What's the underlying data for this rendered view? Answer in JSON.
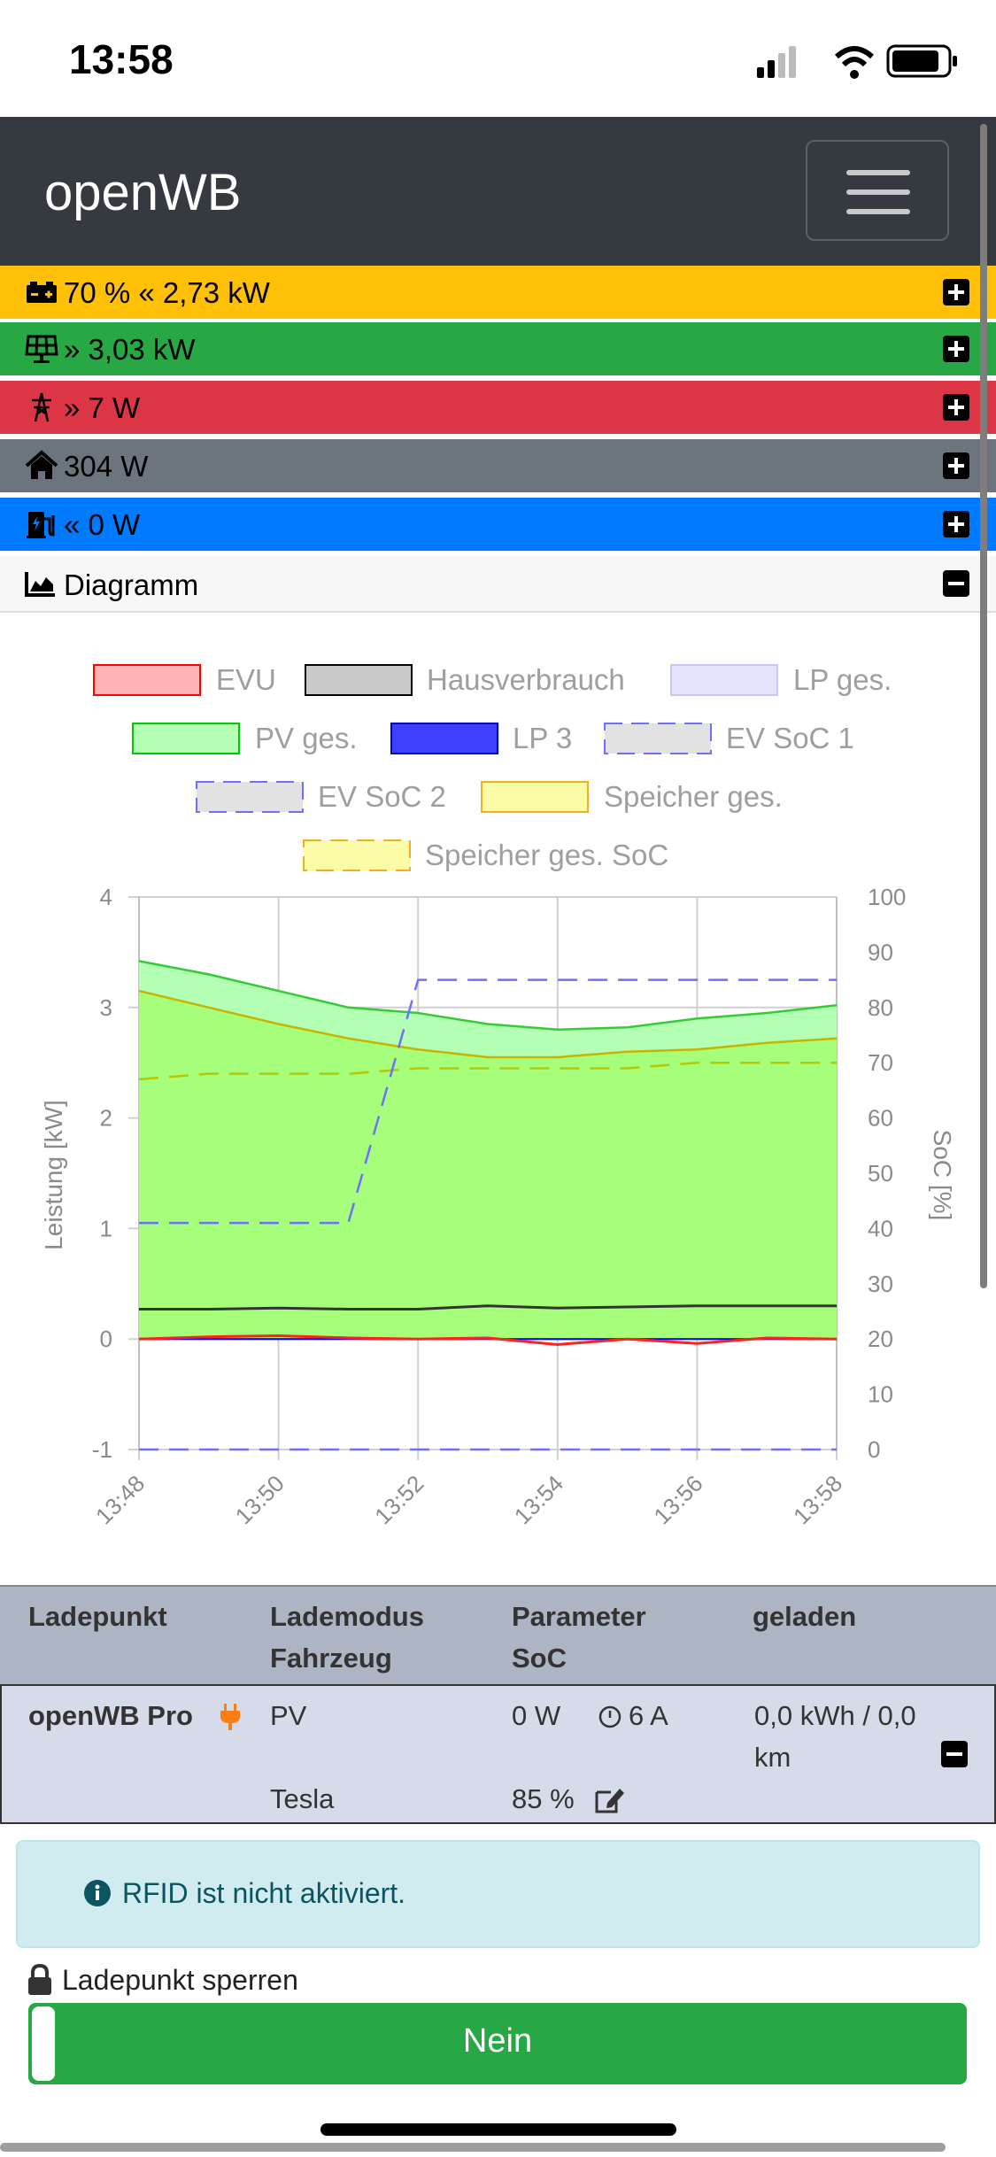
{
  "status_bar": {
    "time": "13:58"
  },
  "app": {
    "brand": "openWB"
  },
  "summary_rows": [
    {
      "label": "70 % « 2,73 kW",
      "color": "#ffc107",
      "icon": "battery-icon"
    },
    {
      "label": "» 3,03 kW",
      "color": "#28a745",
      "icon": "solar-panel-icon"
    },
    {
      "label": "» 7 W",
      "color": "#dc3545",
      "icon": "power-tower-icon"
    },
    {
      "label": "304 W",
      "color": "#6c757d",
      "icon": "home-icon"
    },
    {
      "label": "« 0 W",
      "color": "#007bff",
      "icon": "charging-station-icon"
    }
  ],
  "diagram": {
    "title": "Diagramm"
  },
  "chart_data": {
    "type": "area",
    "x": [
      "13:48",
      "13:49",
      "13:50",
      "13:51",
      "13:52",
      "13:53",
      "13:54",
      "13:55",
      "13:56",
      "13:57",
      "13:58"
    ],
    "x_tick_labels": [
      "13:48",
      "13:50",
      "13:52",
      "13:54",
      "13:56",
      "13:58"
    ],
    "ylabel": "Leistung [kW]",
    "ylabel_right": "SoC [%]",
    "ylim": [
      -1,
      4
    ],
    "ylim_right": [
      0,
      100
    ],
    "y_ticks": [
      "-1",
      "0",
      "1",
      "2",
      "3",
      "4"
    ],
    "y_ticks_right": [
      "0",
      "10",
      "20",
      "30",
      "40",
      "50",
      "60",
      "70",
      "80",
      "90",
      "100"
    ],
    "grid": true,
    "legend_position": "top",
    "series": [
      {
        "name": "EVU",
        "axis": "left",
        "values": [
          0.0,
          0.02,
          0.03,
          0.01,
          0.0,
          0.01,
          -0.05,
          0.0,
          -0.04,
          0.01,
          0.0
        ]
      },
      {
        "name": "Hausverbrauch",
        "axis": "left",
        "values": [
          0.27,
          0.27,
          0.28,
          0.27,
          0.27,
          0.3,
          0.28,
          0.29,
          0.3,
          0.3,
          0.3
        ]
      },
      {
        "name": "LP ges.",
        "axis": "left",
        "values": [
          0,
          0,
          0,
          0,
          0,
          0,
          0,
          0,
          0,
          0,
          0
        ]
      },
      {
        "name": "PV ges.",
        "axis": "left",
        "values": [
          3.42,
          3.3,
          3.15,
          3.0,
          2.95,
          2.85,
          2.8,
          2.82,
          2.9,
          2.95,
          3.02
        ]
      },
      {
        "name": "LP 3",
        "axis": "left",
        "values": [
          0,
          0,
          0,
          0,
          0,
          0,
          0,
          0,
          0,
          0,
          0
        ]
      },
      {
        "name": "EV SoC 1",
        "axis": "right",
        "values": [
          41,
          41,
          41,
          41,
          85,
          85,
          85,
          85,
          85,
          85,
          85
        ]
      },
      {
        "name": "EV SoC 2",
        "axis": "right",
        "values": [
          0,
          0,
          0,
          0,
          0,
          0,
          0,
          0,
          0,
          0,
          0
        ]
      },
      {
        "name": "Speicher ges.",
        "axis": "left",
        "values": [
          3.15,
          3.0,
          2.85,
          2.72,
          2.62,
          2.55,
          2.55,
          2.6,
          2.62,
          2.68,
          2.72
        ]
      },
      {
        "name": "Speicher ges. SoC",
        "axis": "right",
        "values": [
          67,
          68,
          68,
          68,
          69,
          69,
          69,
          69,
          70,
          70,
          70
        ]
      }
    ],
    "colors": {
      "EVU": "#ff0000",
      "Hausverbrauch": "#000000",
      "LP ges.": "#6f6fff",
      "PV ges.": "#00c800",
      "LP 3": "#0000ff",
      "EV SoC 1": "#6f6fff",
      "EV SoC 2": "#6f6fff",
      "Speicher ges.": "#d3a500",
      "Speicher ges. SoC": "#d3a500"
    }
  },
  "table": {
    "headers": [
      {
        "line1": "Ladepunkt",
        "line2": ""
      },
      {
        "line1": "Lademodus",
        "line2": "Fahrzeug"
      },
      {
        "line1": "Parameter",
        "line2": "SoC"
      },
      {
        "line1": "geladen",
        "line2": ""
      }
    ],
    "row": {
      "name": "openWB Pro",
      "mode": "PV",
      "vehicle": "Tesla",
      "power": "0 W",
      "current": "6 A",
      "soc": "85 %",
      "charged_line1": "0,0 kWh / 0,0",
      "charged_line2": "km"
    }
  },
  "rfid": {
    "message": "RFID ist nicht aktiviert."
  },
  "lock": {
    "label": "Ladepunkt sperren",
    "toggle_value": "Nein"
  }
}
